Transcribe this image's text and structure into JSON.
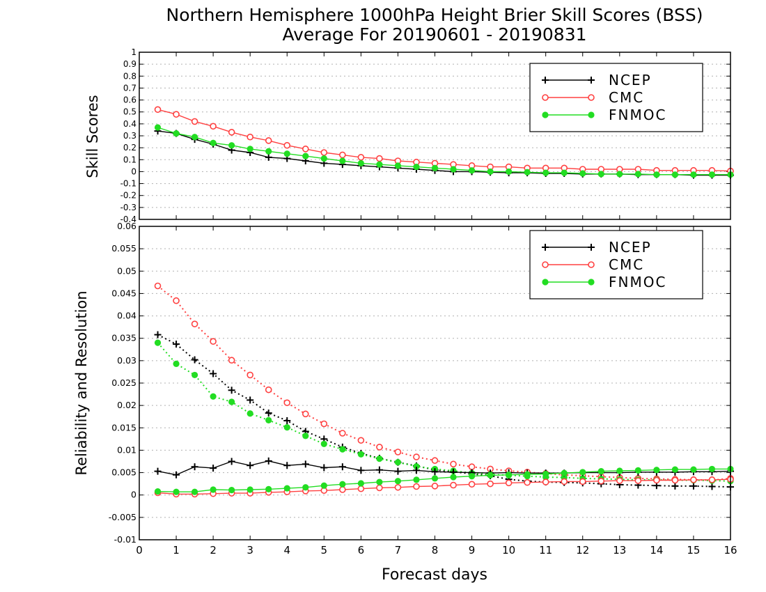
{
  "chart_data": [
    {
      "type": "line",
      "title": "Northern Hemisphere 1000hPa Height Brier Skill Scores (BSS)",
      "subtitle": "Average For 20190601 - 20190831",
      "xlabel": "",
      "ylabel": "Skill Scores",
      "xlim": [
        0,
        16
      ],
      "ylim": [
        -0.4,
        1
      ],
      "yticks": [
        "-0.4",
        "-0.3",
        "-0.2",
        "-0.1",
        "0",
        "0.1",
        "0.2",
        "0.3",
        "0.4",
        "0.5",
        "0.6",
        "0.7",
        "0.8",
        "0.9",
        "1"
      ],
      "grid": true,
      "legend": "top-right",
      "x": [
        0.5,
        1,
        1.5,
        2,
        2.5,
        3,
        3.5,
        4,
        4.5,
        5,
        5.5,
        6,
        6.5,
        7,
        7.5,
        8,
        8.5,
        9,
        9.5,
        10,
        10.5,
        11,
        11.5,
        12,
        12.5,
        13,
        13.5,
        14,
        14.5,
        15,
        15.5,
        16
      ],
      "series": [
        {
          "name": "NCEP",
          "color": "#000000",
          "marker": "plus",
          "values": [
            0.34,
            0.32,
            0.27,
            0.23,
            0.18,
            0.16,
            0.12,
            0.11,
            0.09,
            0.07,
            0.06,
            0.05,
            0.04,
            0.03,
            0.02,
            0.01,
            0.0,
            0.0,
            -0.005,
            -0.01,
            -0.01,
            -0.015,
            -0.015,
            -0.02,
            -0.02,
            -0.02,
            -0.025,
            -0.025,
            -0.025,
            -0.03,
            -0.03,
            -0.03
          ]
        },
        {
          "name": "CMC",
          "color": "#ff4040",
          "marker": "open-circle",
          "values": [
            0.52,
            0.48,
            0.42,
            0.38,
            0.33,
            0.29,
            0.26,
            0.22,
            0.19,
            0.16,
            0.14,
            0.12,
            0.11,
            0.09,
            0.08,
            0.07,
            0.06,
            0.05,
            0.04,
            0.04,
            0.03,
            0.03,
            0.03,
            0.02,
            0.02,
            0.02,
            0.02,
            0.01,
            0.01,
            0.01,
            0.01,
            0.005
          ]
        },
        {
          "name": "FNMOC",
          "color": "#22dd22",
          "marker": "filled-circle",
          "values": [
            0.37,
            0.32,
            0.29,
            0.24,
            0.22,
            0.19,
            0.17,
            0.15,
            0.13,
            0.11,
            0.09,
            0.07,
            0.06,
            0.05,
            0.04,
            0.03,
            0.02,
            0.01,
            0.0,
            0.0,
            -0.005,
            -0.01,
            -0.01,
            -0.015,
            -0.02,
            -0.02,
            -0.02,
            -0.025,
            -0.025,
            -0.025,
            -0.025,
            -0.025
          ]
        }
      ]
    },
    {
      "type": "line",
      "title": "",
      "xlabel": "Forecast days",
      "ylabel": "Reliability and Resolution",
      "xlim": [
        0,
        16
      ],
      "xticks": [
        "0",
        "1",
        "2",
        "3",
        "4",
        "5",
        "6",
        "7",
        "8",
        "9",
        "10",
        "11",
        "12",
        "13",
        "14",
        "15",
        "16"
      ],
      "ylim": [
        -0.01,
        0.06
      ],
      "yticks": [
        "-0.01",
        "-0.005",
        "0",
        "0.005",
        "0.01",
        "0.015",
        "0.02",
        "0.025",
        "0.03",
        "0.035",
        "0.04",
        "0.045",
        "0.05",
        "0.055",
        "0.06"
      ],
      "grid": true,
      "legend": "top-right",
      "x": [
        0.5,
        1,
        1.5,
        2,
        2.5,
        3,
        3.5,
        4,
        4.5,
        5,
        5.5,
        6,
        6.5,
        7,
        7.5,
        8,
        8.5,
        9,
        9.5,
        10,
        10.5,
        11,
        11.5,
        12,
        12.5,
        13,
        13.5,
        14,
        14.5,
        15,
        15.5,
        16
      ],
      "series": [
        {
          "name": "NCEP",
          "color": "#000000",
          "marker": "plus",
          "line": "dotted",
          "values": [
            0.0358,
            0.0337,
            0.0302,
            0.0271,
            0.0234,
            0.0212,
            0.0183,
            0.0166,
            0.0142,
            0.0125,
            0.0107,
            0.0093,
            0.0082,
            0.0073,
            0.0065,
            0.0056,
            0.0052,
            0.0047,
            0.0043,
            0.0035,
            0.0031,
            0.0029,
            0.0028,
            0.0027,
            0.0025,
            0.0023,
            0.0022,
            0.0021,
            0.002,
            0.002,
            0.0019,
            0.0018
          ]
        },
        {
          "name": "CMC",
          "color": "#ff4040",
          "marker": "open-circle",
          "line": "dotted",
          "values": [
            0.0467,
            0.0434,
            0.0382,
            0.0343,
            0.0301,
            0.0268,
            0.0235,
            0.0206,
            0.0181,
            0.0159,
            0.0138,
            0.0122,
            0.0107,
            0.0096,
            0.0085,
            0.0077,
            0.0069,
            0.0063,
            0.0058,
            0.0054,
            0.0051,
            0.0048,
            0.0045,
            0.0043,
            0.0041,
            0.0039,
            0.0037,
            0.0036,
            0.0035,
            0.0034,
            0.0033,
            0.0037
          ]
        },
        {
          "name": "FNMOC",
          "color": "#22dd22",
          "marker": "filled-circle",
          "line": "dotted",
          "values": [
            0.034,
            0.0293,
            0.0268,
            0.022,
            0.0208,
            0.0182,
            0.0167,
            0.0151,
            0.0132,
            0.0114,
            0.0102,
            0.0091,
            0.0081,
            0.0073,
            0.0064,
            0.0058,
            0.0054,
            0.0049,
            0.0046,
            0.0044,
            0.0042,
            0.004,
            0.0039,
            0.0037,
            0.0036,
            0.0035,
            0.0034,
            0.0034,
            0.0033,
            0.0033,
            0.0032,
            0.0031
          ]
        },
        {
          "name": "",
          "color": "#000000",
          "marker": "plus",
          "line": "solid",
          "values": [
            0.0053,
            0.0045,
            0.0063,
            0.006,
            0.0075,
            0.0066,
            0.0076,
            0.0066,
            0.0069,
            0.0061,
            0.0063,
            0.0055,
            0.0056,
            0.0053,
            0.0055,
            0.0052,
            0.0051,
            0.005,
            0.0049,
            0.005,
            0.0049,
            0.0049,
            0.0049,
            0.005,
            0.005,
            0.005,
            0.0051,
            0.0051,
            0.0051,
            0.0052,
            0.0052,
            0.0053
          ]
        },
        {
          "name": "",
          "color": "#ff4040",
          "marker": "open-circle",
          "line": "solid",
          "values": [
            0.0005,
            0.0002,
            0.0002,
            0.0003,
            0.0004,
            0.0004,
            0.0006,
            0.0007,
            0.0009,
            0.001,
            0.0012,
            0.0014,
            0.0016,
            0.0017,
            0.0019,
            0.002,
            0.0022,
            0.0024,
            0.0025,
            0.0027,
            0.0028,
            0.0029,
            0.003,
            0.003,
            0.0031,
            0.0032,
            0.0032,
            0.0033,
            0.0033,
            0.0034,
            0.0034,
            0.0035
          ]
        },
        {
          "name": "",
          "color": "#22dd22",
          "marker": "filled-circle",
          "line": "solid",
          "values": [
            0.0008,
            0.0007,
            0.0007,
            0.0012,
            0.0011,
            0.0012,
            0.0013,
            0.0015,
            0.0017,
            0.0021,
            0.0024,
            0.0026,
            0.0029,
            0.0031,
            0.0034,
            0.0037,
            0.004,
            0.0042,
            0.0044,
            0.0045,
            0.0046,
            0.0047,
            0.0049,
            0.0051,
            0.0053,
            0.0054,
            0.0055,
            0.0056,
            0.0057,
            0.0057,
            0.0058,
            0.0058
          ]
        }
      ]
    }
  ]
}
